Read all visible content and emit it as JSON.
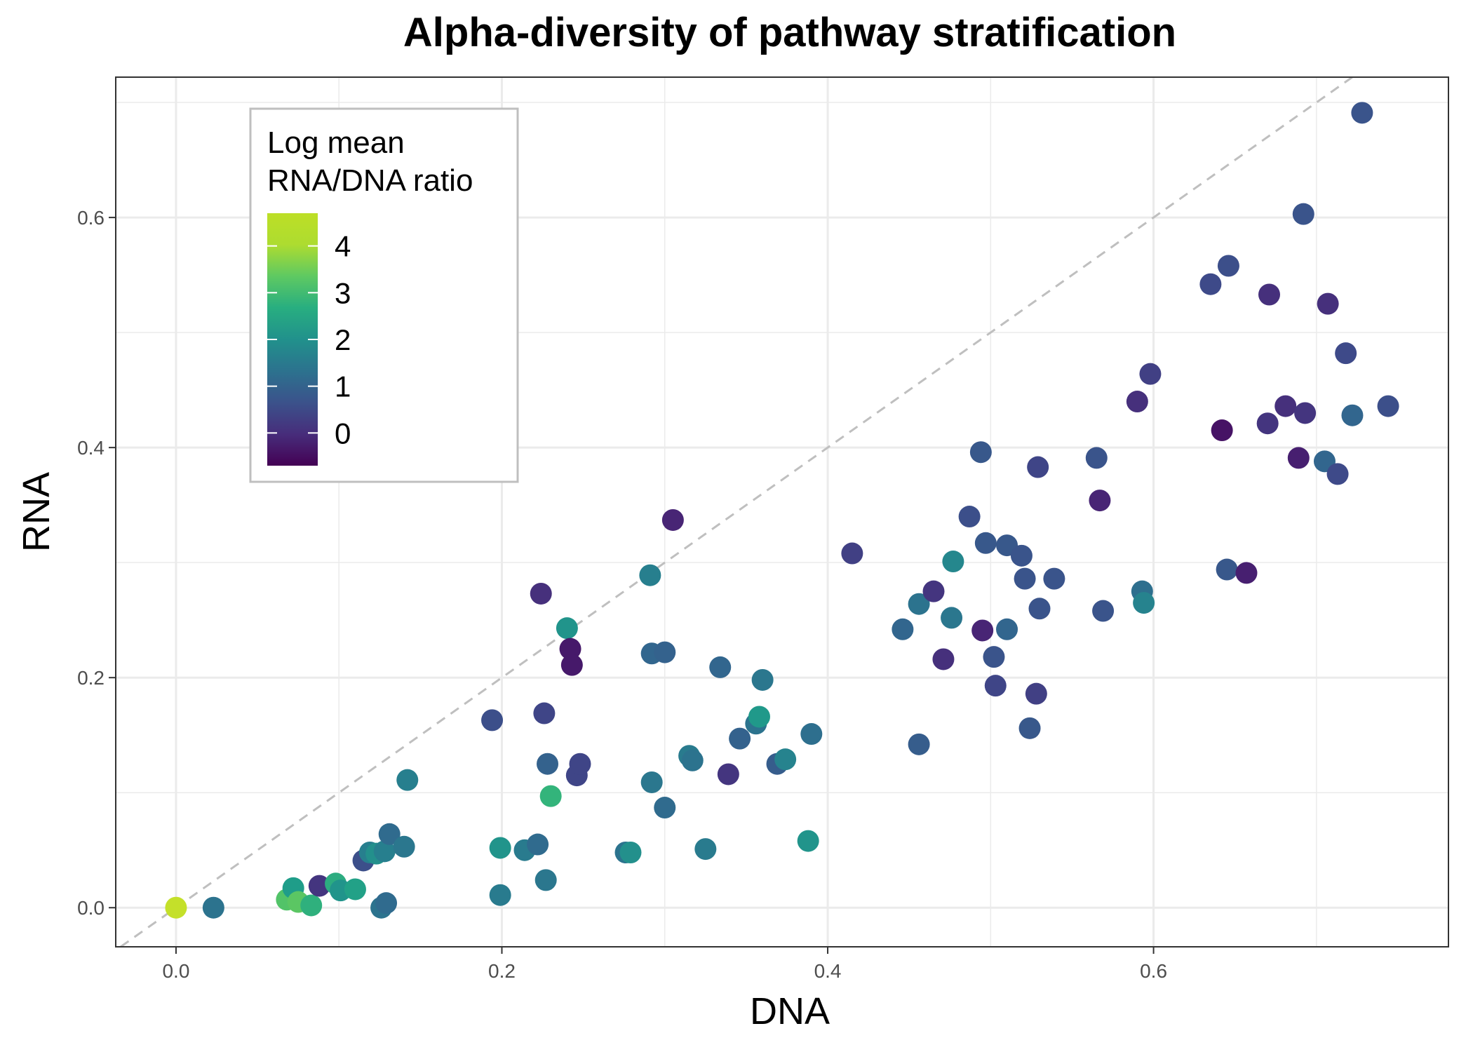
{
  "chart_data": {
    "type": "scatter",
    "title": "Alpha-diversity of pathway stratification",
    "xlabel": "DNA",
    "ylabel": "RNA",
    "xlim": [
      -0.037,
      0.781
    ],
    "ylim": [
      -0.034,
      0.722
    ],
    "x_ticks": [
      0.0,
      0.2,
      0.4,
      0.6
    ],
    "x_tick_labels": [
      "0.0",
      "0.2",
      "0.4",
      "0.6"
    ],
    "y_ticks": [
      0.0,
      0.2,
      0.4,
      0.6
    ],
    "y_tick_labels": [
      "0.0",
      "0.2",
      "0.4",
      "0.6"
    ],
    "grid": true,
    "reference_line": "y = x (dashed)",
    "legend": {
      "title_lines": [
        "Log mean",
        "RNA/DNA ratio"
      ],
      "type": "colorbar",
      "palette": "viridis",
      "range": [
        -0.7,
        4.7
      ],
      "ticks": [
        0,
        1,
        2,
        3,
        4
      ],
      "tick_labels": [
        "0",
        "1",
        "2",
        "3",
        "4"
      ],
      "placement": "top-left"
    },
    "points": [
      {
        "x": 0.0,
        "y": 0.0,
        "c": 4.6
      },
      {
        "x": 0.023,
        "y": 0.0,
        "c": 1.5
      },
      {
        "x": 0.068,
        "y": 0.007,
        "c": 3.5
      },
      {
        "x": 0.072,
        "y": 0.017,
        "c": 2.5
      },
      {
        "x": 0.075,
        "y": 0.005,
        "c": 3.6
      },
      {
        "x": 0.083,
        "y": 0.002,
        "c": 3.0
      },
      {
        "x": 0.088,
        "y": 0.019,
        "c": 0.2
      },
      {
        "x": 0.098,
        "y": 0.021,
        "c": 2.9
      },
      {
        "x": 0.101,
        "y": 0.015,
        "c": 2.3
      },
      {
        "x": 0.11,
        "y": 0.016,
        "c": 2.6
      },
      {
        "x": 0.115,
        "y": 0.041,
        "c": 0.7
      },
      {
        "x": 0.119,
        "y": 0.048,
        "c": 1.8
      },
      {
        "x": 0.123,
        "y": 0.047,
        "c": 2.2
      },
      {
        "x": 0.126,
        "y": 0.0,
        "c": 1.5
      },
      {
        "x": 0.128,
        "y": 0.049,
        "c": 1.8
      },
      {
        "x": 0.129,
        "y": 0.004,
        "c": 1.3
      },
      {
        "x": 0.131,
        "y": 0.064,
        "c": 1.3
      },
      {
        "x": 0.14,
        "y": 0.053,
        "c": 1.6
      },
      {
        "x": 0.142,
        "y": 0.111,
        "c": 1.8
      },
      {
        "x": 0.194,
        "y": 0.163,
        "c": 0.7
      },
      {
        "x": 0.199,
        "y": 0.052,
        "c": 2.3
      },
      {
        "x": 0.199,
        "y": 0.011,
        "c": 1.7
      },
      {
        "x": 0.214,
        "y": 0.05,
        "c": 1.7
      },
      {
        "x": 0.222,
        "y": 0.055,
        "c": 1.3
      },
      {
        "x": 0.224,
        "y": 0.273,
        "c": 0.1
      },
      {
        "x": 0.226,
        "y": 0.169,
        "c": 0.5
      },
      {
        "x": 0.227,
        "y": 0.024,
        "c": 1.6
      },
      {
        "x": 0.228,
        "y": 0.125,
        "c": 1.1
      },
      {
        "x": 0.23,
        "y": 0.097,
        "c": 3.1
      },
      {
        "x": 0.24,
        "y": 0.243,
        "c": 2.3
      },
      {
        "x": 0.242,
        "y": 0.225,
        "c": -0.3
      },
      {
        "x": 0.243,
        "y": 0.211,
        "c": -0.3
      },
      {
        "x": 0.246,
        "y": 0.115,
        "c": 0.5
      },
      {
        "x": 0.248,
        "y": 0.125,
        "c": 0.5
      },
      {
        "x": 0.276,
        "y": 0.048,
        "c": 1.5
      },
      {
        "x": 0.279,
        "y": 0.048,
        "c": 2.2
      },
      {
        "x": 0.291,
        "y": 0.289,
        "c": 1.8
      },
      {
        "x": 0.292,
        "y": 0.109,
        "c": 1.6
      },
      {
        "x": 0.292,
        "y": 0.221,
        "c": 1.2
      },
      {
        "x": 0.3,
        "y": 0.222,
        "c": 1.1
      },
      {
        "x": 0.3,
        "y": 0.087,
        "c": 1.3
      },
      {
        "x": 0.305,
        "y": 0.337,
        "c": -0.1
      },
      {
        "x": 0.315,
        "y": 0.132,
        "c": 1.7
      },
      {
        "x": 0.317,
        "y": 0.128,
        "c": 1.5
      },
      {
        "x": 0.325,
        "y": 0.051,
        "c": 1.7
      },
      {
        "x": 0.334,
        "y": 0.209,
        "c": 1.2
      },
      {
        "x": 0.339,
        "y": 0.116,
        "c": 0.2
      },
      {
        "x": 0.346,
        "y": 0.147,
        "c": 1.1
      },
      {
        "x": 0.356,
        "y": 0.16,
        "c": 1.5
      },
      {
        "x": 0.358,
        "y": 0.166,
        "c": 2.4
      },
      {
        "x": 0.36,
        "y": 0.198,
        "c": 1.6
      },
      {
        "x": 0.369,
        "y": 0.125,
        "c": 1.0
      },
      {
        "x": 0.374,
        "y": 0.129,
        "c": 1.9
      },
      {
        "x": 0.388,
        "y": 0.058,
        "c": 2.3
      },
      {
        "x": 0.39,
        "y": 0.151,
        "c": 1.4
      },
      {
        "x": 0.415,
        "y": 0.308,
        "c": 0.4
      },
      {
        "x": 0.446,
        "y": 0.242,
        "c": 1.2
      },
      {
        "x": 0.456,
        "y": 0.264,
        "c": 1.5
      },
      {
        "x": 0.456,
        "y": 0.142,
        "c": 1.0
      },
      {
        "x": 0.465,
        "y": 0.275,
        "c": 0.2
      },
      {
        "x": 0.471,
        "y": 0.216,
        "c": 0.1
      },
      {
        "x": 0.476,
        "y": 0.252,
        "c": 1.6
      },
      {
        "x": 0.477,
        "y": 0.301,
        "c": 2.0
      },
      {
        "x": 0.487,
        "y": 0.34,
        "c": 0.7
      },
      {
        "x": 0.494,
        "y": 0.396,
        "c": 0.9
      },
      {
        "x": 0.495,
        "y": 0.241,
        "c": -0.1
      },
      {
        "x": 0.497,
        "y": 0.317,
        "c": 0.9
      },
      {
        "x": 0.502,
        "y": 0.218,
        "c": 0.8
      },
      {
        "x": 0.503,
        "y": 0.193,
        "c": 0.5
      },
      {
        "x": 0.51,
        "y": 0.242,
        "c": 1.2
      },
      {
        "x": 0.51,
        "y": 0.315,
        "c": 0.9
      },
      {
        "x": 0.519,
        "y": 0.306,
        "c": 0.8
      },
      {
        "x": 0.521,
        "y": 0.286,
        "c": 0.8
      },
      {
        "x": 0.524,
        "y": 0.156,
        "c": 0.9
      },
      {
        "x": 0.528,
        "y": 0.186,
        "c": 0.4
      },
      {
        "x": 0.529,
        "y": 0.383,
        "c": 0.5
      },
      {
        "x": 0.53,
        "y": 0.26,
        "c": 0.8
      },
      {
        "x": 0.539,
        "y": 0.286,
        "c": 0.8
      },
      {
        "x": 0.565,
        "y": 0.391,
        "c": 0.8
      },
      {
        "x": 0.567,
        "y": 0.354,
        "c": -0.1
      },
      {
        "x": 0.569,
        "y": 0.258,
        "c": 0.8
      },
      {
        "x": 0.59,
        "y": 0.44,
        "c": 0.1
      },
      {
        "x": 0.593,
        "y": 0.275,
        "c": 1.4
      },
      {
        "x": 0.594,
        "y": 0.265,
        "c": 1.9
      },
      {
        "x": 0.598,
        "y": 0.464,
        "c": 0.4
      },
      {
        "x": 0.635,
        "y": 0.542,
        "c": 0.6
      },
      {
        "x": 0.642,
        "y": 0.415,
        "c": -0.4
      },
      {
        "x": 0.645,
        "y": 0.294,
        "c": 0.9
      },
      {
        "x": 0.646,
        "y": 0.558,
        "c": 0.7
      },
      {
        "x": 0.657,
        "y": 0.291,
        "c": -0.2
      },
      {
        "x": 0.67,
        "y": 0.421,
        "c": 0.2
      },
      {
        "x": 0.671,
        "y": 0.533,
        "c": 0.1
      },
      {
        "x": 0.681,
        "y": 0.436,
        "c": 0.1
      },
      {
        "x": 0.689,
        "y": 0.391,
        "c": -0.2
      },
      {
        "x": 0.692,
        "y": 0.603,
        "c": 0.8
      },
      {
        "x": 0.693,
        "y": 0.43,
        "c": 0.2
      },
      {
        "x": 0.705,
        "y": 0.388,
        "c": 1.2
      },
      {
        "x": 0.707,
        "y": 0.525,
        "c": 0.1
      },
      {
        "x": 0.713,
        "y": 0.377,
        "c": 0.6
      },
      {
        "x": 0.718,
        "y": 0.482,
        "c": 0.6
      },
      {
        "x": 0.722,
        "y": 0.428,
        "c": 1.2
      },
      {
        "x": 0.728,
        "y": 0.691,
        "c": 0.8
      },
      {
        "x": 0.744,
        "y": 0.436,
        "c": 0.7
      }
    ]
  }
}
